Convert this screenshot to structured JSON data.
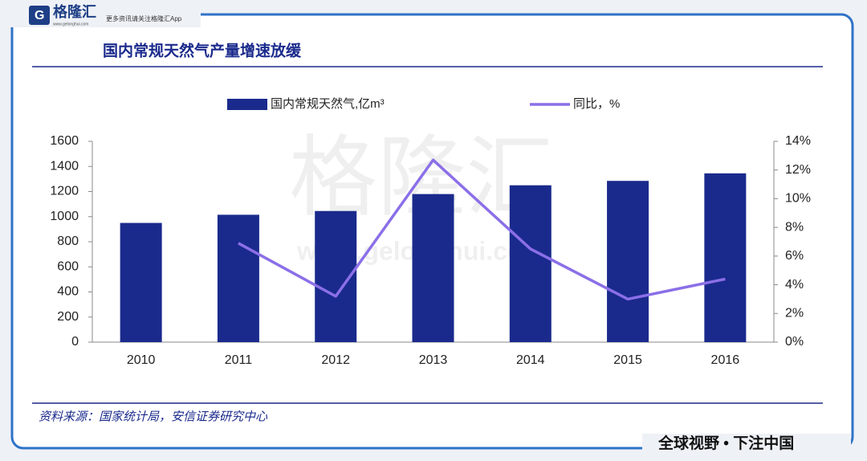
{
  "logo": {
    "name": "格隆汇",
    "site": "www.gelonghui.com",
    "slogan": "更多资讯请关注格隆汇App"
  },
  "watermark": {
    "name": "格隆汇",
    "site": "www.gelonghui.com"
  },
  "chart_data": {
    "type": "bar_line",
    "title": "国内常规天然气产量增速放缓",
    "categories": [
      "2010",
      "2011",
      "2012",
      "2013",
      "2014",
      "2015",
      "2016"
    ],
    "series": [
      {
        "name": "国内常规天然气,亿m³",
        "type": "bar",
        "color": "#1a2a8c",
        "values": [
          950,
          1015,
          1045,
          1180,
          1250,
          1285,
          1345
        ]
      },
      {
        "name": "同比，%",
        "type": "line",
        "axis": "y2",
        "color": "#8b6fe8",
        "values": [
          null,
          6.9,
          3.2,
          12.7,
          6.5,
          3.0,
          4.4
        ]
      }
    ],
    "ylim": [
      0,
      1600
    ],
    "yticks": [
      0,
      200,
      400,
      600,
      800,
      1000,
      1200,
      1400,
      1600
    ],
    "y2lim": [
      0,
      14
    ],
    "y2ticks": [
      {
        "value": 0,
        "label": "0%"
      },
      {
        "value": 2,
        "label": "2%"
      },
      {
        "value": 4,
        "label": "4%"
      },
      {
        "value": 6,
        "label": "6%"
      },
      {
        "value": 8,
        "label": "8%"
      },
      {
        "value": 10,
        "label": "10%"
      },
      {
        "value": 12,
        "label": "12%"
      },
      {
        "value": 14,
        "label": "14%"
      }
    ],
    "legend": "top",
    "grid": false,
    "source": "资料来源：国家统计局，安信证券研究中心"
  },
  "footer": "全球视野 • 下注中国"
}
